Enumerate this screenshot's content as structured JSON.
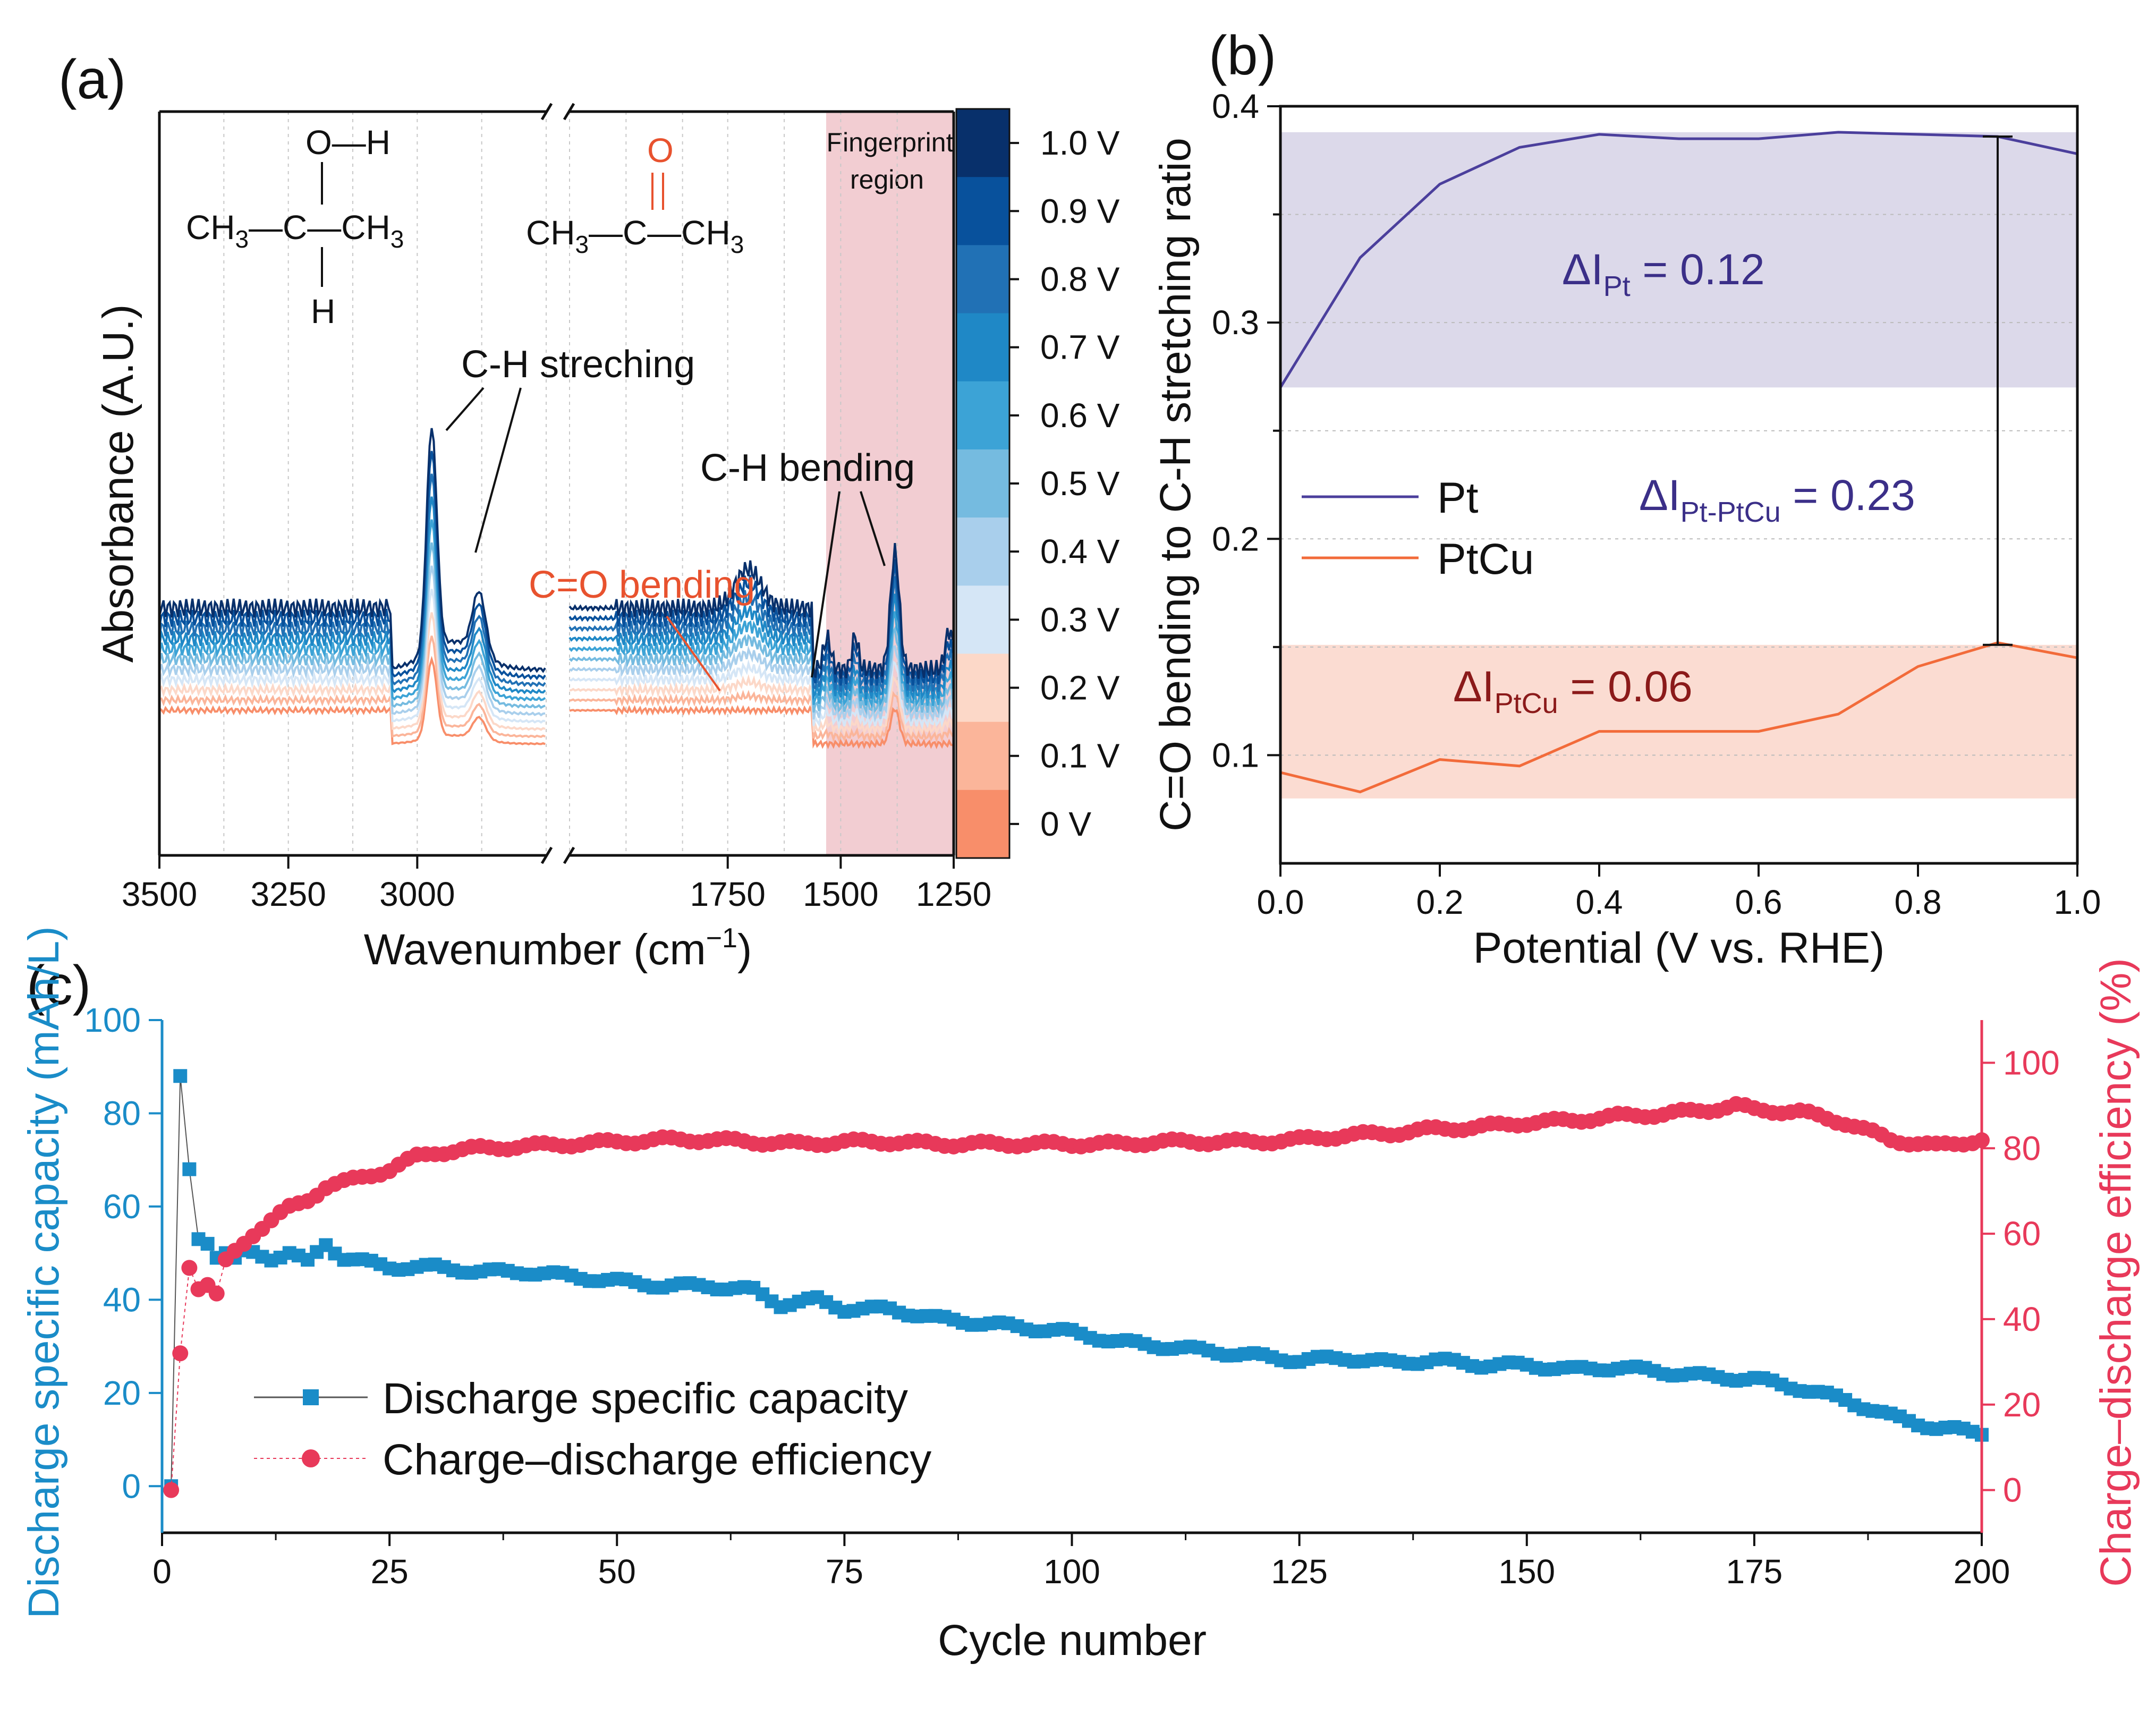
{
  "chart_data": [
    {
      "panel": "(a)",
      "type": "line",
      "xlabel": "Wavenumber (cm−1)",
      "xlabel_main": "Wavenumber (cm",
      "xlabel_sup": "−1",
      "xlabel_close": ")",
      "ylabel": "Absorbance (A.U.)",
      "x_segments": [
        [
          3500,
          2750
        ],
        [
          2100,
          1250
        ]
      ],
      "xticks": [
        3500,
        3250,
        3000,
        1750,
        1500,
        1250
      ],
      "series_count": 11,
      "annotations": {
        "ch_stretching": "C-H streching",
        "ch_bending": "C-H bending",
        "co_bending": "C=O bending",
        "fingerprint": "Fingerprint",
        "fingerprint2": "region",
        "ipa_top": "O—H",
        "ipa_mid": "CH3—C—CH3",
        "ipa_bot": "H",
        "acetone_top": "O",
        "acetone_mid": "CH3—C—CH3"
      },
      "colorbar": {
        "labels": [
          "1.0 V",
          "0.9 V",
          "0.8 V",
          "0.7 V",
          "0.6 V",
          "0.5 V",
          "0.4 V",
          "0.3 V",
          "0.2 V",
          "0.1 V",
          "0 V"
        ],
        "colors": [
          "#08306b",
          "#08519c",
          "#2171b5",
          "#1f88c6",
          "#3ca3d6",
          "#75bbe0",
          "#a9cfec",
          "#d5e6f6",
          "#fcd8c8",
          "#fbb59a",
          "#f88e6a"
        ]
      }
    },
    {
      "panel": "(b)",
      "type": "line",
      "xlabel": "Potential (V vs. RHE)",
      "ylabel": "C=O bending to C-H stretching ratio",
      "xlim": [
        0,
        1.0
      ],
      "ylim": [
        0.05,
        0.4
      ],
      "xticks": [
        "0.0",
        "0.2",
        "0.4",
        "0.6",
        "0.8",
        "1.0"
      ],
      "yticks": [
        "0.1",
        "0.2",
        "0.3",
        "0.4"
      ],
      "x": [
        0,
        0.1,
        0.2,
        0.3,
        0.4,
        0.5,
        0.6,
        0.7,
        0.8,
        0.9,
        1.0
      ],
      "series": [
        {
          "name": "Pt",
          "color": "#4b3f9c",
          "values": [
            0.27,
            0.33,
            0.364,
            0.381,
            0.387,
            0.385,
            0.385,
            0.388,
            0.387,
            0.386,
            0.378
          ]
        },
        {
          "name": "PtCu",
          "color": "#f26b3a",
          "values": [
            0.092,
            0.083,
            0.098,
            0.095,
            0.111,
            0.111,
            0.111,
            0.119,
            0.141,
            0.152,
            0.145
          ]
        }
      ],
      "bands": [
        {
          "name": "Pt",
          "ymin": 0.27,
          "ymax": 0.388,
          "color": "#dcd9ea"
        },
        {
          "name": "PtCu",
          "ymin": 0.08,
          "ymax": 0.151,
          "color": "#fbdcd2"
        }
      ],
      "errorbar": {
        "x": 0.9,
        "ymin": 0.151,
        "ymax": 0.386
      },
      "annotations": {
        "pt": {
          "base": "ΔI",
          "sub": "Pt",
          "rest": " = 0.12"
        },
        "ptptcu": {
          "base": "ΔI",
          "sub": "Pt-PtCu",
          "rest": " = 0.23"
        },
        "ptcu": {
          "base": "ΔI",
          "sub": "PtCu",
          "rest": " = 0.06"
        }
      }
    },
    {
      "panel": "(c)",
      "type": "scatter",
      "xlabel": "Cycle number",
      "ylabel_left": "Discharge specific capacity (mAh/L)",
      "ylabel_right": "Charge–discharge efficiency (%)",
      "xlim": [
        0,
        200
      ],
      "ylim_left": [
        -10,
        100
      ],
      "ylim_right": [
        -10,
        110
      ],
      "xticks": [
        0,
        25,
        50,
        75,
        100,
        125,
        150,
        175,
        200
      ],
      "yticks_left": [
        0,
        20,
        40,
        60,
        80,
        100
      ],
      "yticks_right": [
        0,
        20,
        40,
        60,
        80,
        100
      ],
      "series": [
        {
          "name": "Discharge specific capacity",
          "color": "#1a8cc8",
          "marker": "square",
          "axis": "left",
          "points": [
            [
              1,
              0
            ],
            [
              2,
              88
            ],
            [
              3,
              68
            ],
            [
              4,
              53
            ],
            [
              5,
              52
            ],
            [
              6,
              49
            ],
            [
              7,
              50
            ],
            [
              8,
              49
            ],
            [
              9,
              50
            ],
            [
              10,
              50
            ],
            [
              12,
              49
            ],
            [
              14,
              50
            ],
            [
              16,
              48
            ],
            [
              18,
              52
            ],
            [
              20,
              49
            ],
            [
              25,
              47
            ],
            [
              30,
              47
            ],
            [
              35,
              46
            ],
            [
              40,
              46
            ],
            [
              45,
              45
            ],
            [
              50,
              44
            ],
            [
              55,
              43
            ],
            [
              60,
              43
            ],
            [
              65,
              42
            ],
            [
              68,
              39
            ],
            [
              72,
              40
            ],
            [
              75,
              38
            ],
            [
              80,
              38
            ],
            [
              85,
              36
            ],
            [
              90,
              35
            ],
            [
              95,
              34
            ],
            [
              100,
              33
            ],
            [
              105,
              31
            ],
            [
              110,
              30
            ],
            [
              115,
              29
            ],
            [
              120,
              28
            ],
            [
              125,
              27
            ],
            [
              130,
              27.5
            ],
            [
              135,
              26.5
            ],
            [
              140,
              27
            ],
            [
              145,
              26
            ],
            [
              150,
              26
            ],
            [
              155,
              25
            ],
            [
              160,
              25.5
            ],
            [
              165,
              24.5
            ],
            [
              170,
              23.5
            ],
            [
              175,
              23
            ],
            [
              180,
              21
            ],
            [
              185,
              18.5
            ],
            [
              190,
              15
            ],
            [
              195,
              12.5
            ],
            [
              200,
              11.5
            ]
          ]
        },
        {
          "name": "Charge–discharge efficiency",
          "color": "#e8395a",
          "marker": "circle",
          "axis": "right",
          "points": [
            [
              1,
              0
            ],
            [
              2,
              32
            ],
            [
              3,
              52
            ],
            [
              4,
              47
            ],
            [
              5,
              48
            ],
            [
              6,
              46
            ],
            [
              7,
              54
            ],
            [
              8,
              56
            ],
            [
              10,
              60
            ],
            [
              12,
              63
            ],
            [
              14,
              66
            ],
            [
              16,
              68
            ],
            [
              18,
              71
            ],
            [
              20,
              72
            ],
            [
              25,
              75
            ],
            [
              28,
              78
            ],
            [
              30,
              79
            ],
            [
              35,
              80
            ],
            [
              40,
              80.5
            ],
            [
              45,
              81
            ],
            [
              50,
              81.5
            ],
            [
              55,
              82
            ],
            [
              60,
              82
            ],
            [
              65,
              81.5
            ],
            [
              70,
              81
            ],
            [
              75,
              81.5
            ],
            [
              80,
              81.5
            ],
            [
              85,
              81
            ],
            [
              90,
              81
            ],
            [
              95,
              81
            ],
            [
              100,
              81
            ],
            [
              105,
              81
            ],
            [
              110,
              81.5
            ],
            [
              115,
              81.5
            ],
            [
              120,
              81.5
            ],
            [
              125,
              82
            ],
            [
              130,
              83
            ],
            [
              135,
              83.5
            ],
            [
              140,
              84.5
            ],
            [
              145,
              85
            ],
            [
              150,
              86
            ],
            [
              155,
              86.5
            ],
            [
              160,
              87.5
            ],
            [
              165,
              88
            ],
            [
              170,
              89
            ],
            [
              173,
              90
            ],
            [
              175,
              89
            ],
            [
              180,
              88.5
            ],
            [
              185,
              86
            ],
            [
              190,
              82
            ],
            [
              195,
              80.5
            ],
            [
              200,
              82
            ]
          ]
        }
      ]
    }
  ],
  "panel_labels": {
    "a": "(a)",
    "b": "(b)",
    "c": "(c)"
  },
  "colors": {
    "axis": "#111111",
    "left_axis": "#1a8cc8",
    "right_axis": "#e8395a",
    "fingerprint": "#f2cdd2"
  }
}
